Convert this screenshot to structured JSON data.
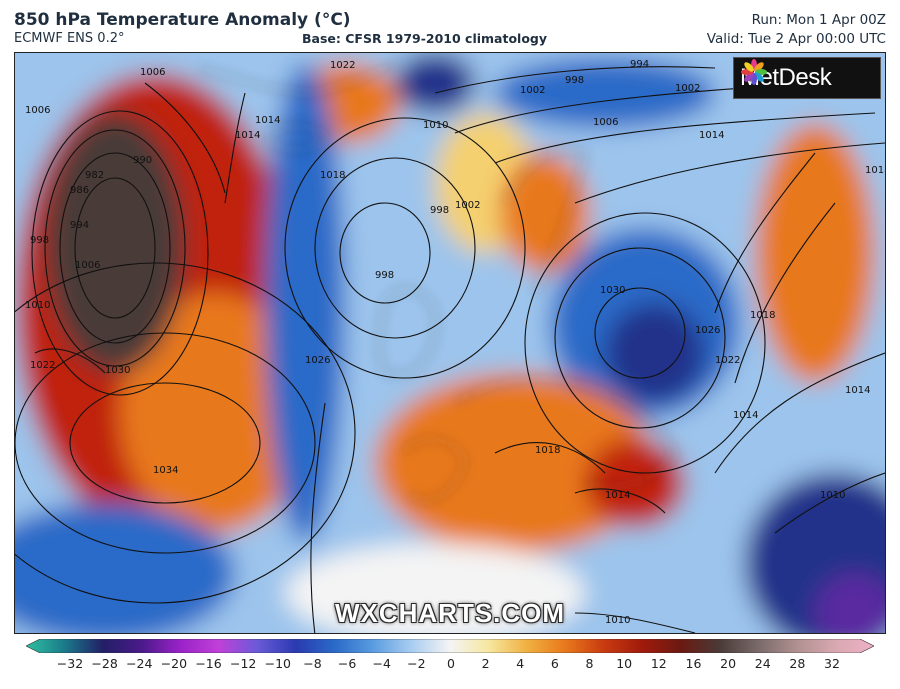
{
  "header": {
    "title": "850 hPa Temperature Anomaly (°C)",
    "model": "ECMWF ENS 0.2°",
    "base": "Base: CFSR 1979-2010 climatology",
    "run": "Run: Mon 1 Apr 00Z",
    "valid": "Valid: Tue 2 Apr 00:00 UTC"
  },
  "logo": {
    "text": "MetDesk",
    "icon": "metdesk-petal-logo-icon"
  },
  "watermark": "WXCHARTS.COM",
  "colors": {
    "deep_warm": "#4a3a38",
    "red": "#c0200e",
    "orange": "#e8781c",
    "yellow": "#f4d070",
    "white": "#f4f4f4",
    "light_blue": "#9cc4ec",
    "blue": "#2a6ac8",
    "deep_blue": "#22308a",
    "violet": "#5a2aa0"
  },
  "colorbar": {
    "labels": [
      "−32",
      "−28",
      "−24",
      "−20",
      "−16",
      "−12",
      "−10",
      "−8",
      "−6",
      "−4",
      "−2",
      "0",
      "2",
      "4",
      "6",
      "8",
      "10",
      "12",
      "16",
      "20",
      "24",
      "28",
      "32"
    ],
    "stops": [
      "#2ec0a0",
      "#1a7a8a",
      "#231f66",
      "#4a1a8a",
      "#9a22c8",
      "#c040d8",
      "#6a5ad8",
      "#2a3ab0",
      "#2a6ac8",
      "#5a9ce0",
      "#a8cdf0",
      "#f4f4f4",
      "#f6e7a0",
      "#f0b040",
      "#e8781c",
      "#c83a10",
      "#a01a0c",
      "#6a1a12",
      "#4a3a38",
      "#7a6a6a",
      "#b09090",
      "#d8a8b0",
      "#f0b0c8"
    ]
  },
  "isobars": [
    {
      "label": "982"
    },
    {
      "label": "986"
    },
    {
      "label": "990"
    },
    {
      "label": "994"
    },
    {
      "label": "998"
    },
    {
      "label": "1006"
    },
    {
      "label": "1010"
    },
    {
      "label": "1014"
    },
    {
      "label": "1018"
    },
    {
      "label": "1022"
    },
    {
      "label": "1026"
    },
    {
      "label": "1030"
    },
    {
      "label": "1034"
    },
    {
      "label": "1002"
    },
    {
      "label": "998"
    },
    {
      "label": "1002"
    },
    {
      "label": "998"
    },
    {
      "label": "998"
    },
    {
      "label": "1002"
    },
    {
      "label": "994"
    },
    {
      "label": "1006"
    },
    {
      "label": "1010"
    },
    {
      "label": "1014"
    },
    {
      "label": "1014"
    },
    {
      "label": "1018"
    },
    {
      "label": "1022"
    },
    {
      "label": "1026"
    },
    {
      "label": "1030"
    },
    {
      "label": "1018"
    },
    {
      "label": "1014"
    },
    {
      "label": "1018"
    },
    {
      "label": "1014"
    },
    {
      "label": "1010"
    },
    {
      "label": "1010"
    },
    {
      "label": "1022"
    },
    {
      "label": "1006"
    },
    {
      "label": "1006"
    },
    {
      "label": "1014"
    }
  ]
}
